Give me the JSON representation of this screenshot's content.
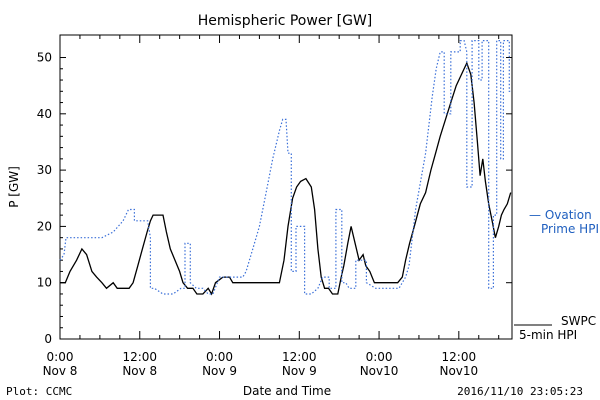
{
  "chart_data": {
    "type": "line",
    "title": "Hemispheric Power [GW]",
    "xlabel": "Date and Time",
    "ylabel": "P [GW]",
    "ylim": [
      0,
      54
    ],
    "yticks": [
      0,
      10,
      20,
      30,
      40,
      50
    ],
    "xlim": [
      0,
      68
    ],
    "xticks": [
      {
        "x": 0,
        "line1": "0:00",
        "line2": "Nov 8"
      },
      {
        "x": 12,
        "line1": "12:00",
        "line2": "Nov 8"
      },
      {
        "x": 24,
        "line1": "0:00",
        "line2": "Nov 9"
      },
      {
        "x": 36,
        "line1": "12:00",
        "line2": "Nov 9"
      },
      {
        "x": 48,
        "line1": "0:00",
        "line2": "Nov10"
      },
      {
        "x": 60,
        "line1": "12:00",
        "line2": "Nov10"
      }
    ],
    "x_unit": "hours since 0:00 Nov 8",
    "series": [
      {
        "name": "SWPC 5-min HPI",
        "legend_lines": [
          "SWPC",
          "5-min HPI"
        ],
        "color": "#000000",
        "style": "solid",
        "points": [
          [
            0,
            10
          ],
          [
            0.8,
            10
          ],
          [
            1.5,
            12
          ],
          [
            2.5,
            14
          ],
          [
            3.3,
            16
          ],
          [
            4,
            15
          ],
          [
            4.8,
            12
          ],
          [
            5.5,
            11
          ],
          [
            6.3,
            10
          ],
          [
            7,
            9
          ],
          [
            8,
            10
          ],
          [
            8.6,
            9
          ],
          [
            9.5,
            9
          ],
          [
            10.4,
            9
          ],
          [
            11,
            10
          ],
          [
            11.7,
            13
          ],
          [
            12.4,
            16
          ],
          [
            13.1,
            19
          ],
          [
            13.6,
            21
          ],
          [
            14,
            22
          ],
          [
            15,
            22
          ],
          [
            15.5,
            22
          ],
          [
            16,
            19
          ],
          [
            16.6,
            16
          ],
          [
            17.3,
            14
          ],
          [
            18,
            12
          ],
          [
            18.5,
            10
          ],
          [
            19.2,
            9
          ],
          [
            20,
            9
          ],
          [
            20.6,
            8
          ],
          [
            21.5,
            8
          ],
          [
            22.3,
            9
          ],
          [
            22.8,
            8
          ],
          [
            23.4,
            10
          ],
          [
            24.5,
            11
          ],
          [
            25.5,
            11
          ],
          [
            26,
            10
          ],
          [
            26.8,
            10
          ],
          [
            27.5,
            10
          ],
          [
            29,
            10
          ],
          [
            31,
            10
          ],
          [
            32,
            10
          ],
          [
            33,
            10
          ],
          [
            33.7,
            14
          ],
          [
            34.3,
            20
          ],
          [
            35,
            25
          ],
          [
            35.6,
            27
          ],
          [
            36.2,
            28
          ],
          [
            37,
            28.5
          ],
          [
            37.8,
            27
          ],
          [
            38.3,
            23
          ],
          [
            38.8,
            16
          ],
          [
            39.3,
            11
          ],
          [
            39.8,
            9
          ],
          [
            40.4,
            9
          ],
          [
            41,
            8
          ],
          [
            41.8,
            8
          ],
          [
            42.3,
            11
          ],
          [
            42.7,
            13
          ],
          [
            43.3,
            17
          ],
          [
            43.8,
            20
          ],
          [
            44.4,
            17
          ],
          [
            45,
            14
          ],
          [
            45.6,
            15
          ],
          [
            46,
            13
          ],
          [
            46.6,
            12
          ],
          [
            47.3,
            10
          ],
          [
            48,
            10
          ],
          [
            49,
            10
          ],
          [
            50,
            10
          ],
          [
            50.8,
            10
          ],
          [
            51.5,
            11
          ],
          [
            52,
            14
          ],
          [
            52.6,
            17
          ],
          [
            53.3,
            20
          ],
          [
            54.2,
            24
          ],
          [
            55,
            26
          ],
          [
            55.8,
            30
          ],
          [
            56.5,
            33
          ],
          [
            57.2,
            36
          ],
          [
            58,
            39
          ],
          [
            58.8,
            42
          ],
          [
            59.6,
            45
          ],
          [
            60.4,
            47
          ],
          [
            61.2,
            49
          ],
          [
            61.8,
            47
          ],
          [
            62.3,
            42
          ],
          [
            62.8,
            35
          ],
          [
            63.2,
            29
          ],
          [
            63.6,
            32
          ],
          [
            64,
            28
          ],
          [
            64.5,
            24
          ],
          [
            65,
            21
          ],
          [
            65.5,
            18
          ],
          [
            66,
            20
          ],
          [
            66.4,
            22
          ],
          [
            66.8,
            23
          ],
          [
            67.3,
            24
          ],
          [
            67.8,
            26
          ]
        ]
      },
      {
        "name": "Ovation Prime HPI",
        "legend_lines": [
          "— Ovation",
          "Prime HPI"
        ],
        "color": "#3a6fd8",
        "style": "dotted",
        "points": [
          [
            0,
            14
          ],
          [
            0.6,
            15
          ],
          [
            0.9,
            18
          ],
          [
            2,
            18
          ],
          [
            4,
            18
          ],
          [
            5.8,
            18
          ],
          [
            6.3,
            18
          ],
          [
            8,
            19
          ],
          [
            9.5,
            21
          ],
          [
            10.3,
            23
          ],
          [
            11.2,
            23
          ],
          [
            11.2,
            21
          ],
          [
            12.2,
            21
          ],
          [
            13.2,
            21
          ],
          [
            13.6,
            18
          ],
          [
            13.6,
            9
          ],
          [
            14.2,
            9
          ],
          [
            15.5,
            8
          ],
          [
            17,
            8
          ],
          [
            18.2,
            9
          ],
          [
            18.8,
            9
          ],
          [
            18.8,
            17
          ],
          [
            19.6,
            17
          ],
          [
            19.6,
            10
          ],
          [
            20.5,
            9
          ],
          [
            21.5,
            9
          ],
          [
            22.3,
            8
          ],
          [
            23,
            8
          ],
          [
            24,
            11
          ],
          [
            25,
            11
          ],
          [
            26.5,
            11
          ],
          [
            27.5,
            11
          ],
          [
            28,
            12
          ],
          [
            29,
            16
          ],
          [
            30,
            20
          ],
          [
            31,
            26
          ],
          [
            32,
            32
          ],
          [
            33,
            37
          ],
          [
            33.5,
            39
          ],
          [
            34,
            39
          ],
          [
            34.3,
            33
          ],
          [
            34.8,
            33
          ],
          [
            34.8,
            12
          ],
          [
            35.5,
            12
          ],
          [
            35.5,
            20
          ],
          [
            36.2,
            20
          ],
          [
            36.8,
            20
          ],
          [
            36.8,
            8
          ],
          [
            37.8,
            8
          ],
          [
            38.8,
            9
          ],
          [
            39.5,
            11
          ],
          [
            40.5,
            11
          ],
          [
            40.5,
            9
          ],
          [
            41.5,
            9
          ],
          [
            41.5,
            23
          ],
          [
            42.4,
            23
          ],
          [
            42.4,
            10
          ],
          [
            43,
            10
          ],
          [
            43.5,
            9
          ],
          [
            44.5,
            9
          ],
          [
            44.5,
            14
          ],
          [
            46.1,
            14
          ],
          [
            46.1,
            10
          ],
          [
            47.5,
            9
          ],
          [
            49,
            9
          ],
          [
            51,
            9
          ],
          [
            52,
            11
          ],
          [
            52.5,
            13
          ],
          [
            53.5,
            23
          ],
          [
            55,
            33
          ],
          [
            56,
            43
          ],
          [
            56.6,
            48
          ],
          [
            57.2,
            51
          ],
          [
            57.8,
            51
          ],
          [
            57.8,
            40
          ],
          [
            58.8,
            40
          ],
          [
            58.8,
            51
          ],
          [
            60.2,
            51
          ],
          [
            60.2,
            53
          ],
          [
            60.8,
            53
          ],
          [
            61.2,
            51
          ],
          [
            61.2,
            27
          ],
          [
            62,
            27
          ],
          [
            62,
            53
          ],
          [
            63,
            53
          ],
          [
            63,
            46
          ],
          [
            63.5,
            46
          ],
          [
            63.5,
            53
          ],
          [
            64.5,
            53
          ],
          [
            64.5,
            9
          ],
          [
            65.2,
            9
          ],
          [
            65.2,
            22
          ],
          [
            65.7,
            22
          ],
          [
            65.7,
            53
          ],
          [
            66.3,
            53
          ],
          [
            66.3,
            32
          ],
          [
            66.7,
            32
          ],
          [
            66.7,
            53
          ],
          [
            67.6,
            53
          ],
          [
            67.6,
            44
          ],
          [
            68,
            44
          ]
        ]
      }
    ],
    "grid": false,
    "legend": "right"
  },
  "footer": {
    "left": "Plot: CCMC",
    "right": "2016/11/10 23:05:23"
  }
}
